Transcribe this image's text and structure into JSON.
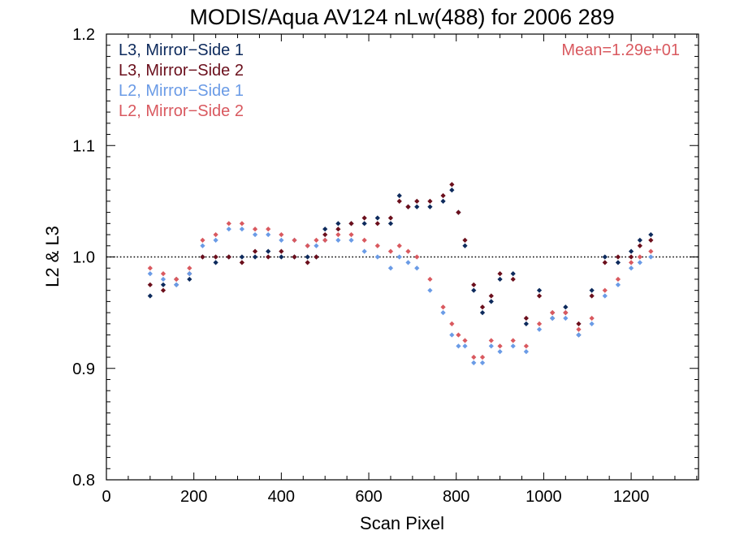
{
  "chart_data": {
    "type": "scatter",
    "title": "MODIS/Aqua AV124 nLw(488) for 2006 289",
    "xlabel": "Scan Pixel",
    "ylabel": "L2 & L3",
    "xlim": [
      0,
      1354
    ],
    "ylim": [
      0.8,
      1.2
    ],
    "xticks": [
      "0",
      "200",
      "400",
      "600",
      "800",
      "1000",
      "1200"
    ],
    "yticks": [
      "0.8",
      "0.9",
      "1.0",
      "1.1",
      "1.2"
    ],
    "reference_line": {
      "y": 1.0,
      "style": "dotted"
    },
    "annotation": {
      "text": "Mean=1.29e+01",
      "color": "#d9595f",
      "position": "top-right"
    },
    "legend_position": "top-left",
    "series": [
      {
        "name": "L3, Mirror−Side 1",
        "color": "#0d2a5c",
        "x": [
          100,
          130,
          160,
          190,
          220,
          250,
          280,
          310,
          340,
          370,
          400,
          430,
          460,
          480,
          500,
          530,
          560,
          590,
          620,
          650,
          670,
          690,
          710,
          740,
          770,
          790,
          805,
          820,
          840,
          860,
          880,
          900,
          930,
          960,
          990,
          1020,
          1050,
          1080,
          1110,
          1140,
          1170,
          1200,
          1220,
          1245
        ],
        "y": [
          0.965,
          0.975,
          0.975,
          0.98,
          1.0,
          0.995,
          1.0,
          1.0,
          1.0,
          1.005,
          1.0,
          1.0,
          1.0,
          1.0,
          1.025,
          1.03,
          1.03,
          1.03,
          1.035,
          1.03,
          1.055,
          1.045,
          1.045,
          1.045,
          1.05,
          1.06,
          1.04,
          1.01,
          0.97,
          0.95,
          0.96,
          0.98,
          0.985,
          0.94,
          0.97,
          0.945,
          0.955,
          0.93,
          0.97,
          1.0,
          0.995,
          1.005,
          1.015,
          1.02
        ]
      },
      {
        "name": "L3, Mirror−Side 2",
        "color": "#6b0f1c",
        "x": [
          100,
          130,
          160,
          190,
          220,
          250,
          280,
          310,
          340,
          370,
          400,
          430,
          460,
          480,
          500,
          530,
          560,
          590,
          620,
          650,
          670,
          690,
          710,
          740,
          770,
          790,
          805,
          820,
          840,
          860,
          880,
          900,
          930,
          960,
          990,
          1020,
          1050,
          1080,
          1110,
          1140,
          1170,
          1200,
          1220,
          1245
        ],
        "y": [
          0.975,
          0.97,
          0.98,
          0.985,
          1.0,
          1.0,
          1.0,
          0.995,
          1.005,
          1.0,
          1.005,
          1.0,
          0.995,
          1.0,
          1.02,
          1.025,
          1.03,
          1.035,
          1.03,
          1.035,
          1.05,
          1.045,
          1.05,
          1.05,
          1.055,
          1.065,
          1.04,
          1.015,
          0.975,
          0.955,
          0.965,
          0.985,
          0.98,
          0.945,
          0.965,
          0.95,
          0.95,
          0.94,
          0.965,
          0.995,
          1.0,
          1.0,
          1.01,
          1.015
        ]
      },
      {
        "name": "L2, Mirror−Side 1",
        "color": "#6a9be6",
        "x": [
          100,
          130,
          160,
          190,
          220,
          250,
          280,
          310,
          340,
          370,
          400,
          430,
          460,
          480,
          500,
          530,
          560,
          590,
          620,
          650,
          670,
          690,
          710,
          740,
          770,
          790,
          805,
          820,
          840,
          860,
          880,
          900,
          930,
          960,
          990,
          1020,
          1050,
          1080,
          1110,
          1140,
          1170,
          1200,
          1220,
          1245
        ],
        "y": [
          0.985,
          0.98,
          0.975,
          0.985,
          1.01,
          1.015,
          1.025,
          1.025,
          1.02,
          1.02,
          1.015,
          1.015,
          1.01,
          1.01,
          1.015,
          1.015,
          1.015,
          1.005,
          1.0,
          0.99,
          1.0,
          0.995,
          0.99,
          0.97,
          0.95,
          0.93,
          0.92,
          0.92,
          0.905,
          0.905,
          0.92,
          0.915,
          0.92,
          0.915,
          0.935,
          0.945,
          0.945,
          0.93,
          0.94,
          0.965,
          0.975,
          0.99,
          0.995,
          1.0
        ]
      },
      {
        "name": "L2, Mirror−Side 2",
        "color": "#d9595f",
        "x": [
          100,
          130,
          160,
          190,
          220,
          250,
          280,
          310,
          340,
          370,
          400,
          430,
          460,
          480,
          500,
          530,
          560,
          590,
          620,
          650,
          670,
          690,
          710,
          740,
          770,
          790,
          805,
          820,
          840,
          860,
          880,
          900,
          930,
          960,
          990,
          1020,
          1050,
          1080,
          1110,
          1140,
          1170,
          1200,
          1220,
          1245
        ],
        "y": [
          0.99,
          0.985,
          0.98,
          0.99,
          1.015,
          1.02,
          1.03,
          1.03,
          1.025,
          1.025,
          1.02,
          1.015,
          1.01,
          1.015,
          1.015,
          1.02,
          1.02,
          1.015,
          1.01,
          1.005,
          1.01,
          1.005,
          1.0,
          0.98,
          0.955,
          0.94,
          0.93,
          0.925,
          0.91,
          0.91,
          0.925,
          0.92,
          0.925,
          0.92,
          0.94,
          0.95,
          0.95,
          0.935,
          0.945,
          0.97,
          0.98,
          0.995,
          1.0,
          1.005
        ]
      }
    ]
  }
}
